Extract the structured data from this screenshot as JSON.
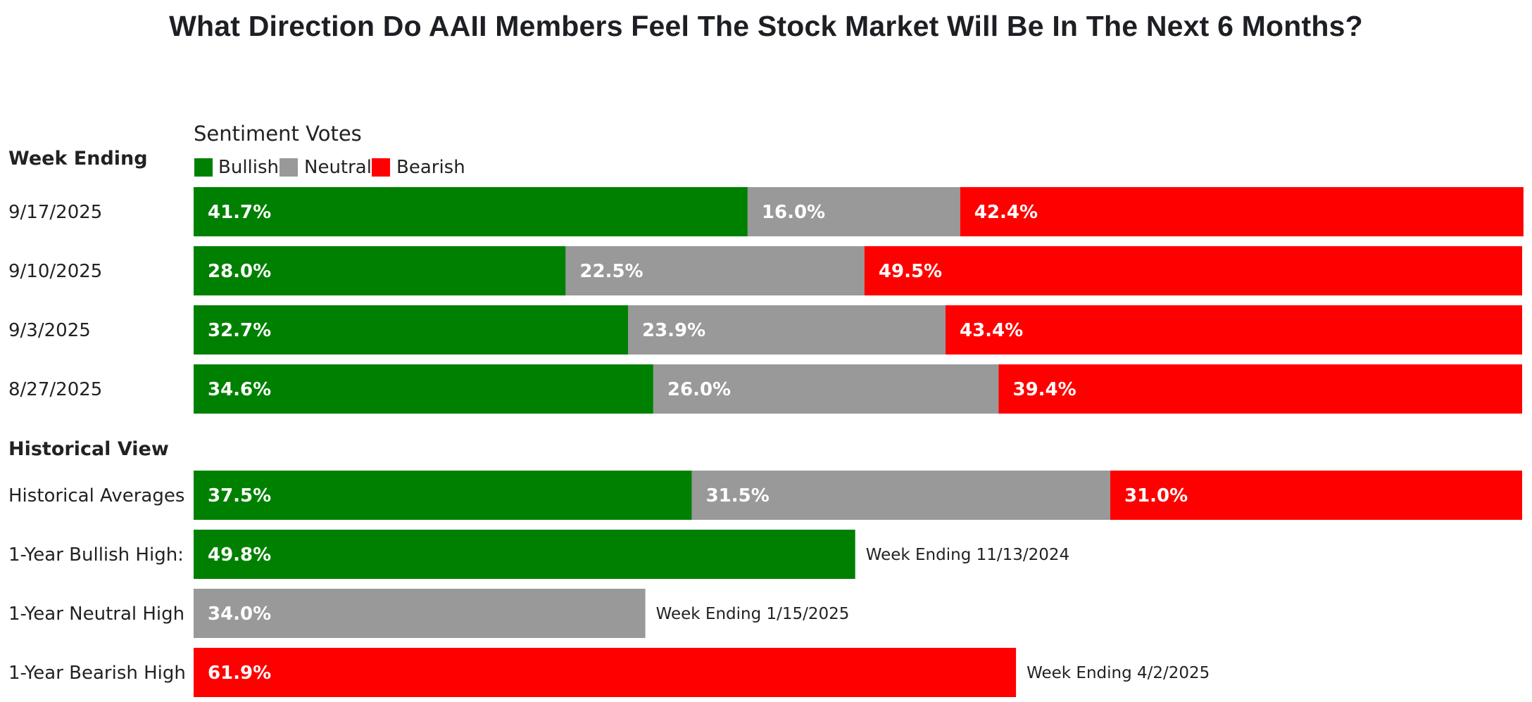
{
  "chart_data": {
    "type": "stacked-bar",
    "title": "What Direction Do AAII Members Feel The Stock Market Will Be In The Next 6 Months?",
    "legend_title": "Sentiment Votes",
    "legend_placement": "top-left",
    "series_names": [
      "Bullish",
      "Neutral",
      "Bearish"
    ],
    "colors": {
      "Bullish": "#008000",
      "Neutral": "#999999",
      "Bearish": "#ff0000"
    },
    "xlim": [
      0,
      100
    ],
    "weekly_heading": "Week Ending",
    "weekly": [
      {
        "label": "9/17/2025",
        "values": [
          41.7,
          16.0,
          42.4
        ],
        "value_labels": [
          "41.7%",
          "16.0%",
          "42.4%"
        ]
      },
      {
        "label": "9/10/2025",
        "values": [
          28.0,
          22.5,
          49.5
        ],
        "value_labels": [
          "28.0%",
          "22.5%",
          "49.5%"
        ]
      },
      {
        "label": "9/3/2025",
        "values": [
          32.7,
          23.9,
          43.4
        ],
        "value_labels": [
          "32.7%",
          "23.9%",
          "43.4%"
        ]
      },
      {
        "label": "8/27/2025",
        "values": [
          34.6,
          26.0,
          39.4
        ],
        "value_labels": [
          "34.6%",
          "26.0%",
          "39.4%"
        ]
      }
    ],
    "historical_heading": "Historical View",
    "historical_averages": {
      "label": "Historical Averages",
      "values": [
        37.5,
        31.5,
        31.0
      ],
      "value_labels": [
        "37.5%",
        "31.5%",
        "31.0%"
      ]
    },
    "highs": [
      {
        "label": "1-Year Bullish High:",
        "series": "Bullish",
        "value": 49.8,
        "value_label": "49.8%",
        "note": "Week Ending 11/13/2024"
      },
      {
        "label": "1-Year Neutral High",
        "series": "Neutral",
        "value": 34.0,
        "value_label": "34.0%",
        "note": "Week Ending 1/15/2025"
      },
      {
        "label": "1-Year Bearish High",
        "series": "Bearish",
        "value": 61.9,
        "value_label": "61.9%",
        "note": "Week Ending 4/2/2025"
      }
    ]
  }
}
